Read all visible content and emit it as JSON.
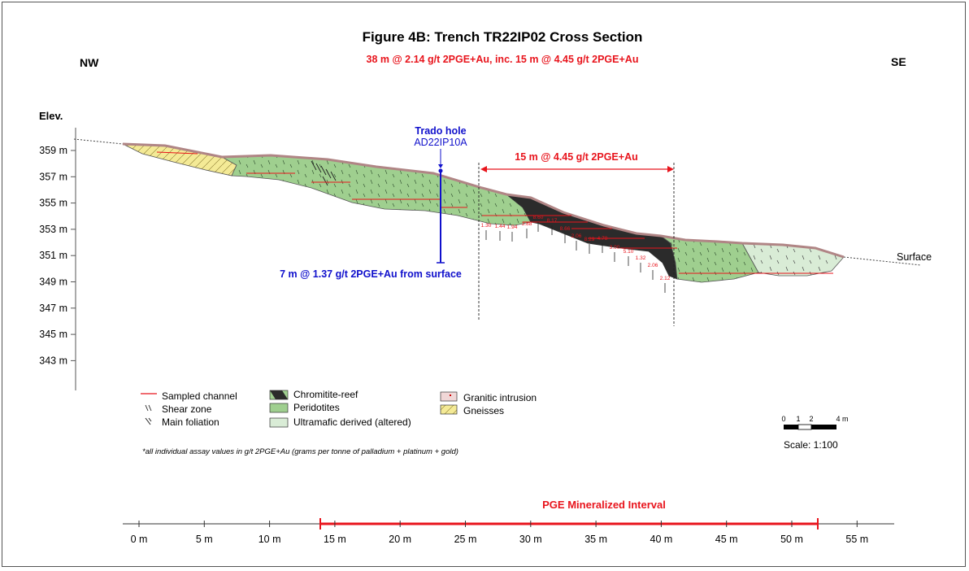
{
  "title": "Figure 4B: Trench TR22IP02 Cross Section",
  "subtitle": "38 m @ 2.14 g/t 2PGE+Au, inc. 15 m @ 4.45 g/t 2PGE+Au",
  "dir_left": "NW",
  "dir_right": "SE",
  "elev_label": "Elev.",
  "elev_ticks": [
    "359 m",
    "357 m",
    "355 m",
    "353 m",
    "351 m",
    "349 m",
    "347 m",
    "345 m",
    "343 m"
  ],
  "hole_title": "Trado hole",
  "hole_id": "AD22IP10A",
  "hole_result": "7 m @ 1.37 g/t 2PGE+Au from surface",
  "interval_label": "15 m @ 4.45 g/t 2PGE+Au",
  "surface_label": "Surface",
  "assays": [
    "1.30",
    "1.44",
    "1.94",
    "3.88",
    "8.60",
    "8.17",
    "8.66",
    "2.06",
    "8.29",
    "4.78",
    "3.00",
    "5.10",
    "1.32",
    "2.06",
    "2.12"
  ],
  "legend": {
    "sampled_channel": "Sampled channel",
    "shear_zone": "Shear zone",
    "main_foliation": "Main foliation",
    "chromitite": "Chromitite-reef",
    "peridotites": "Peridotites",
    "ultramafic": "Ultramafic derived (altered)",
    "granitic": "Granitic intrusion",
    "gneisses": "Gneisses"
  },
  "scale_ticks": [
    "0",
    "1",
    "2",
    "4 m"
  ],
  "scale_text": "Scale: 1:100",
  "footnote": "*all individual assay values in g/t 2PGE+Au (grams per tonne of palladium + platinum + gold)",
  "pge_interval_label": "PGE Mineralized Interval",
  "x_ticks": [
    "0 m",
    "5 m",
    "10 m",
    "15 m",
    "20 m",
    "25 m",
    "30 m",
    "35 m",
    "40 m",
    "45 m",
    "50 m",
    "55 m"
  ],
  "colors": {
    "title": "#000000",
    "highlight_red": "#e8141c",
    "hole_blue": "#1010cc",
    "peridotite": "#9fcf8f",
    "ultramafic": "#d9ecd6",
    "chromitite": "#2b2b2b",
    "gneiss": "#f4ea96",
    "granitic": "#f0d7d7",
    "crust": "#c49a9a"
  }
}
